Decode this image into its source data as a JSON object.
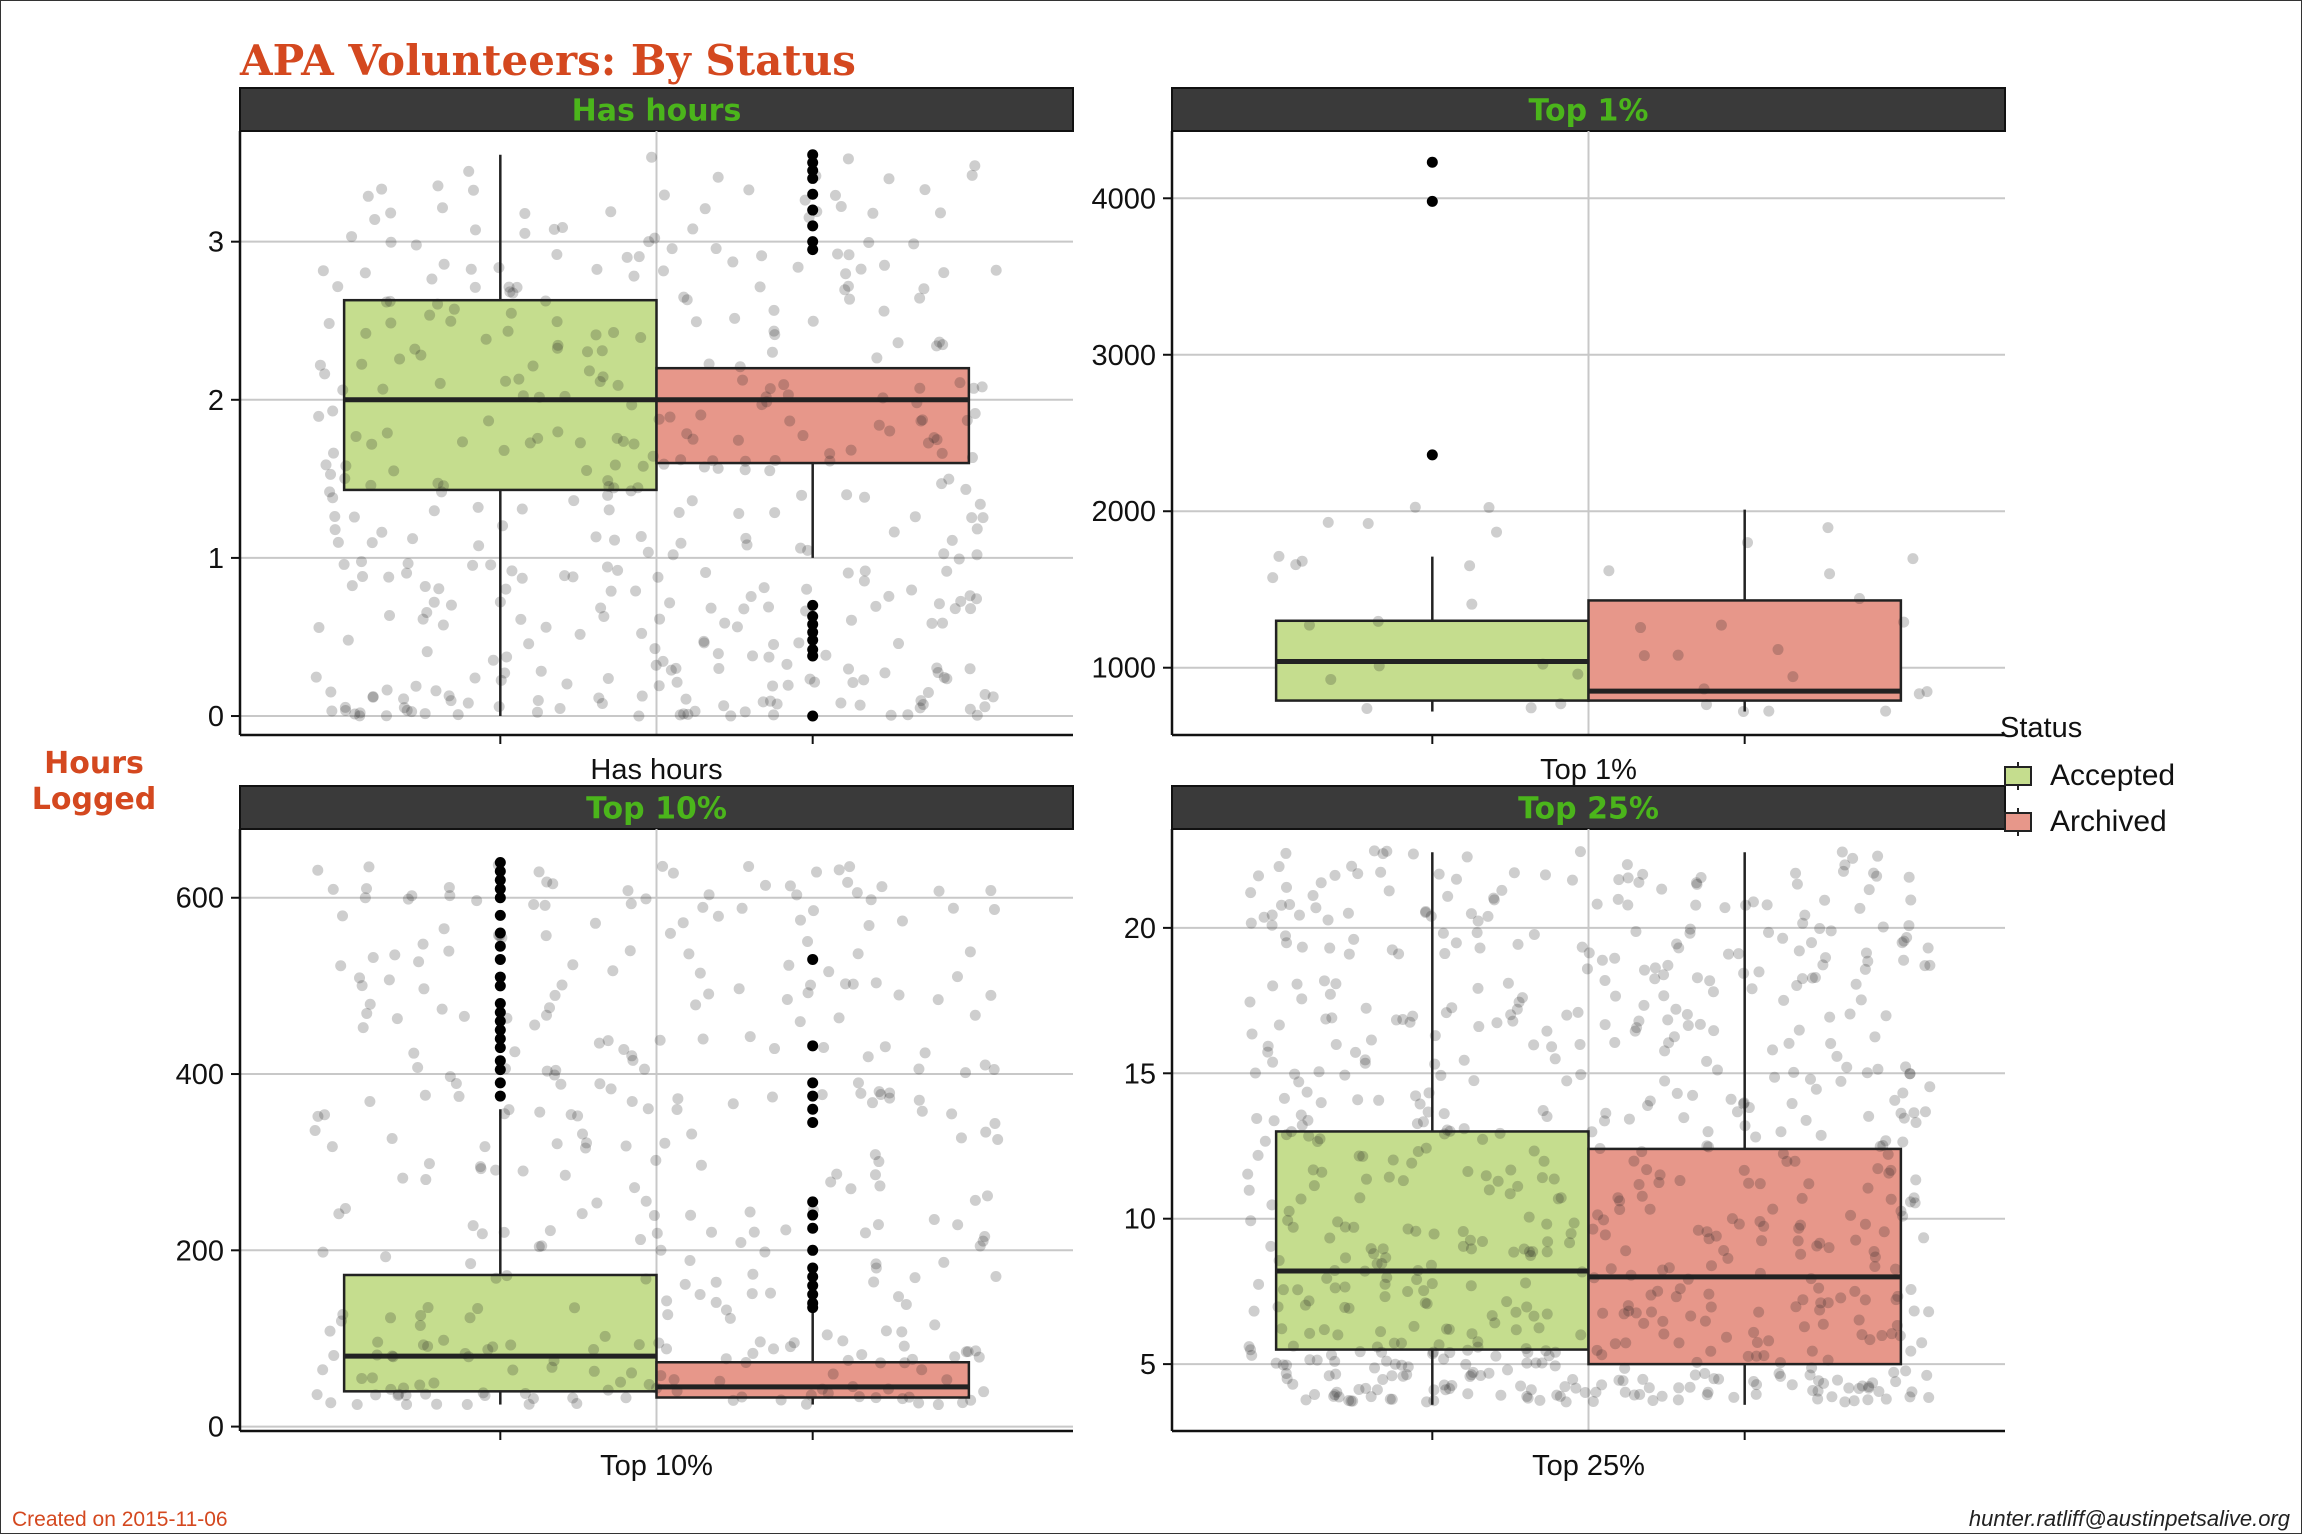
{
  "title": "APA Volunteers: By Status",
  "y_label": "Hours\nLogged",
  "legend": {
    "title": "Status",
    "items": [
      {
        "label": "Accepted",
        "color": "#c5dd8e"
      },
      {
        "label": "Archived",
        "color": "#e7978a"
      }
    ]
  },
  "caption_left": "Created on 2015-11-06",
  "caption_right": "hunter.ratliff@austinpetsalive.org",
  "colors": {
    "title": "#d4481f",
    "strip_bg": "#3a3a3a",
    "strip_text": "#4bb51b",
    "accepted": "#c5dd8e",
    "archived": "#e7978a",
    "grid": "#c8c8c8"
  },
  "chart_data": [
    {
      "type": "box",
      "panel": "Has hours",
      "strip": "Has hours",
      "xlabel": "Has hours",
      "ylim": [
        -0.12,
        3.7
      ],
      "yticks": [
        0,
        1,
        2,
        3
      ],
      "jitter": {
        "points": 420,
        "min": 0,
        "max": 3.55
      },
      "series": [
        {
          "name": "Accepted",
          "q1": 1.43,
          "median": 2.0,
          "q3": 2.63,
          "whisker_low": 0,
          "whisker_high": 3.55,
          "outliers": []
        },
        {
          "name": "Archived",
          "q1": 1.6,
          "median": 2.0,
          "q3": 2.2,
          "whisker_low": 1.0,
          "whisker_high": 2.2,
          "outliers": [
            0,
            0.38,
            0.42,
            0.48,
            0.53,
            0.58,
            0.63,
            0.7,
            2.95,
            3.0,
            3.1,
            3.2,
            3.3,
            3.4,
            3.45,
            3.5,
            3.55
          ]
        }
      ]
    },
    {
      "type": "box",
      "panel": "Top 1%",
      "strip": "Top 1%",
      "xlabel": "Top 1%",
      "ylim": [
        570,
        4430
      ],
      "yticks": [
        1000,
        2000,
        3000,
        4000
      ],
      "jitter": {
        "points": 40,
        "min": 720,
        "max": 2050
      },
      "series": [
        {
          "name": "Accepted",
          "q1": 790,
          "median": 1040,
          "q3": 1300,
          "whisker_low": 720,
          "whisker_high": 1710,
          "outliers": [
            2360,
            3980,
            4230
          ]
        },
        {
          "name": "Archived",
          "q1": 790,
          "median": 850,
          "q3": 1430,
          "whisker_low": 720,
          "whisker_high": 2010,
          "outliers": []
        }
      ]
    },
    {
      "type": "box",
      "panel": "Top 10%",
      "strip": "Top 10%",
      "xlabel": "Top 10%",
      "ylim": [
        -5,
        678
      ],
      "yticks": [
        0,
        200,
        400,
        600
      ],
      "jitter": {
        "points": 360,
        "min": 25,
        "max": 645
      },
      "series": [
        {
          "name": "Accepted",
          "q1": 40,
          "median": 80,
          "q3": 172,
          "whisker_low": 25,
          "whisker_high": 360,
          "outliers": [
            375,
            390,
            405,
            415,
            430,
            440,
            450,
            460,
            470,
            480,
            500,
            510,
            530,
            545,
            560,
            580,
            600,
            610,
            620,
            630,
            640
          ]
        },
        {
          "name": "Archived",
          "q1": 33,
          "median": 45,
          "q3": 73,
          "whisker_low": 25,
          "whisker_high": 133,
          "outliers": [
            135,
            140,
            150,
            160,
            170,
            180,
            200,
            225,
            240,
            255,
            345,
            360,
            375,
            390,
            432,
            530
          ]
        }
      ]
    },
    {
      "type": "box",
      "panel": "Top 25%",
      "strip": "Top 25%",
      "xlabel": "Top 25%",
      "ylim": [
        2.7,
        23.4
      ],
      "yticks": [
        5,
        10,
        15,
        20
      ],
      "jitter": {
        "points": 700,
        "min": 3.7,
        "max": 22.7
      },
      "series": [
        {
          "name": "Accepted",
          "q1": 5.5,
          "median": 8.2,
          "q3": 13.0,
          "whisker_low": 3.6,
          "whisker_high": 22.6,
          "outliers": []
        },
        {
          "name": "Archived",
          "q1": 5.0,
          "median": 8.0,
          "q3": 12.4,
          "whisker_low": 3.6,
          "whisker_high": 22.6,
          "outliers": []
        }
      ]
    }
  ]
}
